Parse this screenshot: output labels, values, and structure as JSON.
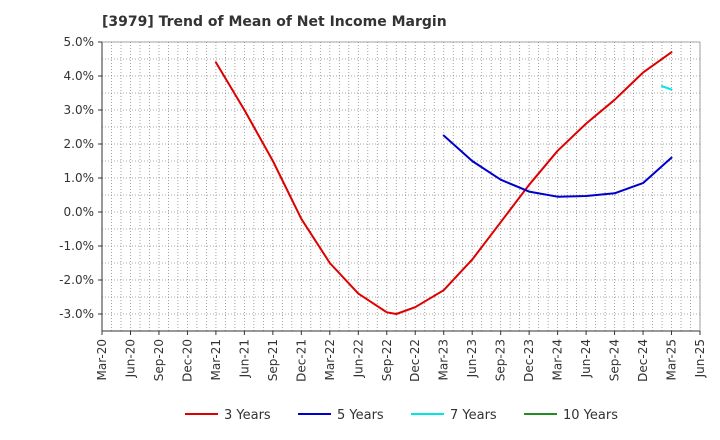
{
  "chart_data": {
    "type": "line",
    "title": "[3979]  Trend of Mean of Net Income Margin",
    "xlabel": "",
    "ylabel": "",
    "x_ticks": [
      "Mar-20",
      "Jun-20",
      "Sep-20",
      "Dec-20",
      "Mar-21",
      "Jun-21",
      "Sep-21",
      "Dec-21",
      "Mar-22",
      "Jun-22",
      "Sep-22",
      "Dec-22",
      "Mar-23",
      "Jun-23",
      "Sep-23",
      "Dec-23",
      "Mar-24",
      "Jun-24",
      "Sep-24",
      "Dec-24",
      "Mar-25",
      "Jun-25"
    ],
    "y_ticks": [
      "5.0%",
      "4.0%",
      "3.0%",
      "2.0%",
      "1.0%",
      "0.0%",
      "-1.0%",
      "-2.0%",
      "-3.0%"
    ],
    "ylim": [
      -3.5,
      5.0
    ],
    "grid": true,
    "legend_position": "bottom",
    "series": [
      {
        "name": "3 Years",
        "color": "#dd0000",
        "points": [
          [
            "Mar-21",
            4.4
          ],
          [
            "Jun-21",
            3.0
          ],
          [
            "Sep-21",
            1.5
          ],
          [
            "Dec-21",
            -0.2
          ],
          [
            "Mar-22",
            -1.5
          ],
          [
            "Jun-22",
            -2.4
          ],
          [
            "Sep-22",
            -2.95
          ],
          [
            "Oct-22",
            -3.0
          ],
          [
            "Dec-22",
            -2.8
          ],
          [
            "Mar-23",
            -2.3
          ],
          [
            "Jun-23",
            -1.4
          ],
          [
            "Sep-23",
            -0.3
          ],
          [
            "Dec-23",
            0.8
          ],
          [
            "Mar-24",
            1.8
          ],
          [
            "Jun-24",
            2.6
          ],
          [
            "Sep-24",
            3.3
          ],
          [
            "Dec-24",
            4.1
          ],
          [
            "Mar-25",
            4.7
          ]
        ]
      },
      {
        "name": "5 Years",
        "color": "#0000cc",
        "points": [
          [
            "Mar-23",
            2.25
          ],
          [
            "Jun-23",
            1.5
          ],
          [
            "Sep-23",
            0.95
          ],
          [
            "Dec-23",
            0.6
          ],
          [
            "Mar-24",
            0.45
          ],
          [
            "Jun-24",
            0.47
          ],
          [
            "Sep-24",
            0.55
          ],
          [
            "Dec-24",
            0.85
          ],
          [
            "Mar-25",
            1.6
          ]
        ]
      },
      {
        "name": "7 Years",
        "color": "#00e5e5",
        "points": [
          [
            "Feb-25",
            3.7
          ],
          [
            "Mar-25",
            3.6
          ]
        ]
      },
      {
        "name": "10 Years",
        "color": "#228b22",
        "points": []
      }
    ]
  }
}
